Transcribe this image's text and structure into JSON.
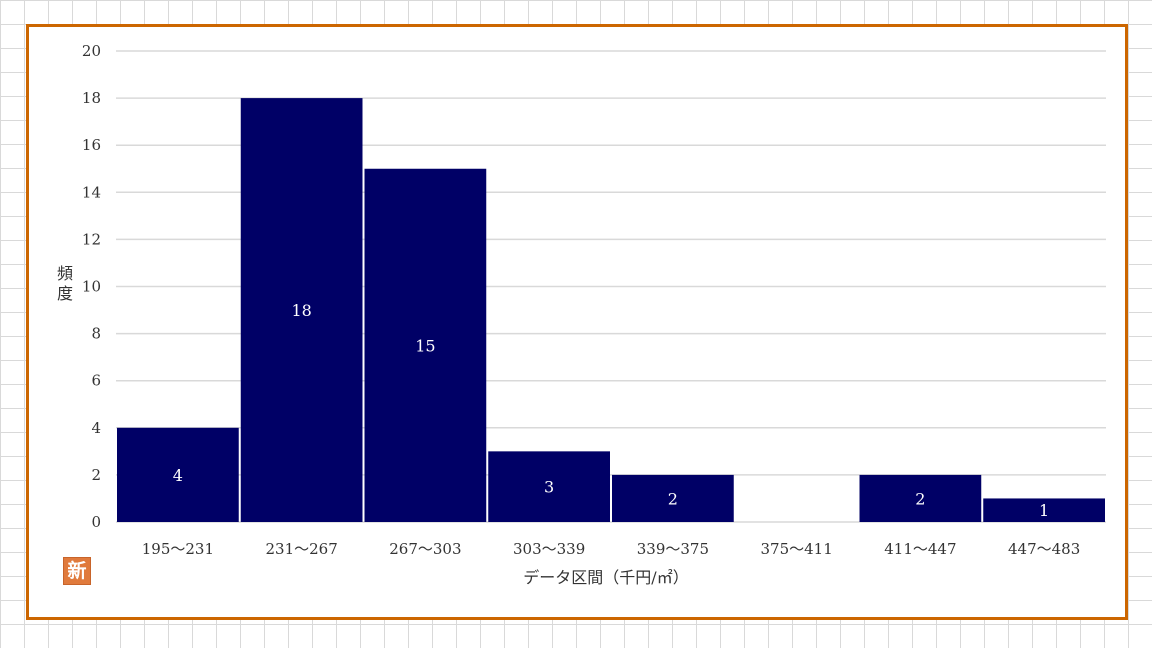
{
  "chart_data": {
    "type": "bar",
    "categories": [
      "195～231",
      "231～267",
      "267～303",
      "303～339",
      "339～375",
      "375～411",
      "411～447",
      "447～483"
    ],
    "values": [
      4,
      18,
      15,
      3,
      2,
      0,
      2,
      1
    ],
    "data_labels": [
      "4",
      "18",
      "15",
      "3",
      "2",
      "",
      "2",
      "1"
    ],
    "xlabel": "データ区間（千円/㎡）",
    "ylabel": "頻度",
    "ylim": [
      0,
      20
    ],
    "yticks": [
      "0",
      "2",
      "4",
      "6",
      "8",
      "10",
      "12",
      "14",
      "16",
      "18",
      "20"
    ],
    "grid": true,
    "bar_color": "#000066",
    "gridline_color": "#d9d9d9",
    "frame_color": "#cc6600"
  },
  "badge": {
    "text": "新",
    "color": "#e07a3c"
  }
}
